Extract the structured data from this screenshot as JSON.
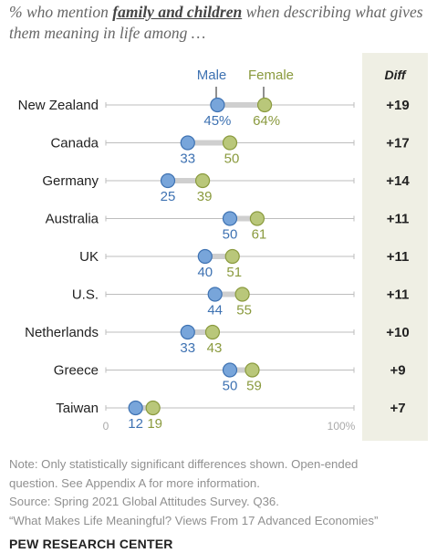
{
  "subtitle": {
    "prefix": "% who mention ",
    "emphasis": "family and children",
    "suffix": " when describing what gives them meaning in life among …"
  },
  "legend": {
    "male": "Male",
    "female": "Female"
  },
  "diff_header": "Diff",
  "axis": {
    "min_label": "0",
    "max_label": "100%"
  },
  "colors": {
    "male": "#78a5da",
    "male_stroke": "#3e72b2",
    "male_text": "#3e72b2",
    "female": "#b9c77a",
    "female_stroke": "#8a9a3e",
    "female_text": "#8a9a3e",
    "diff_bg": "#efefe4"
  },
  "chart_data": {
    "type": "dot-plot",
    "xlim": [
      0,
      100
    ],
    "categories": [
      "New Zealand",
      "Canada",
      "Germany",
      "Australia",
      "UK",
      "U.S.",
      "Netherlands",
      "Greece",
      "Taiwan"
    ],
    "series": [
      {
        "name": "Male",
        "values": [
          45,
          33,
          25,
          50,
          40,
          44,
          33,
          50,
          12
        ]
      },
      {
        "name": "Female",
        "values": [
          64,
          50,
          39,
          61,
          51,
          55,
          43,
          59,
          19
        ]
      }
    ],
    "value_labels": {
      "male": [
        "45%",
        "33",
        "25",
        "50",
        "40",
        "44",
        "33",
        "50",
        "12"
      ],
      "female": [
        "64%",
        "50",
        "39",
        "61",
        "51",
        "55",
        "43",
        "59",
        "19"
      ]
    },
    "diff": [
      "+19",
      "+17",
      "+14",
      "+11",
      "+11",
      "+11",
      "+10",
      "+9",
      "+7"
    ]
  },
  "notes": [
    "Note: Only statistically significant differences shown. Open-ended",
    "question. See Appendix A for more information.",
    "Source: Spring 2021 Global Attitudes Survey. Q36.",
    "“What Makes Life Meaningful? Views From 17 Advanced Economies”"
  ],
  "brand": "PEW RESEARCH CENTER"
}
